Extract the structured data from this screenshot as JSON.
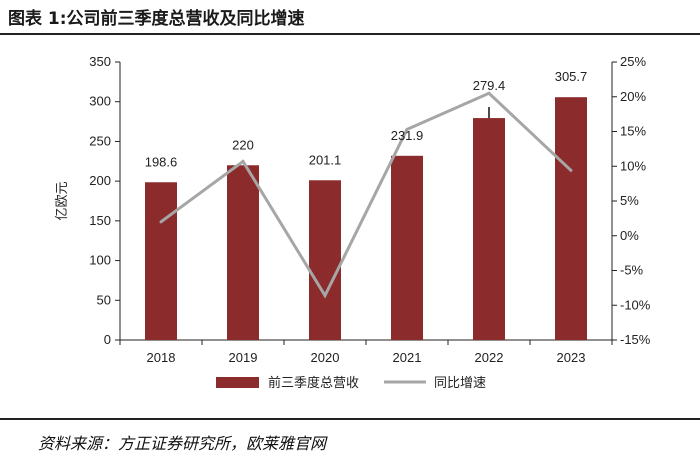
{
  "header": {
    "title": "图表 1:公司前三季度总营收及同比增速"
  },
  "footer": {
    "source": "资料来源：方正证券研究所，欧莱雅官网"
  },
  "colors": {
    "bar": "#8c2b2b",
    "line": "#a6a6a6",
    "rule": "#222222"
  },
  "chart_data": {
    "type": "bar",
    "categories": [
      "2018",
      "2019",
      "2020",
      "2021",
      "2022",
      "2023"
    ],
    "ylabel": "亿欧元",
    "ylim": [
      0,
      350
    ],
    "y_ticks": [
      "0",
      "50",
      "100",
      "150",
      "200",
      "250",
      "300",
      "350"
    ],
    "y2lim": [
      -15,
      25
    ],
    "y2_ticks": [
      "-15%",
      "-10%",
      "-5%",
      "0%",
      "5%",
      "10%",
      "15%",
      "20%",
      "25%"
    ],
    "series": [
      {
        "name": "前三季度总营收",
        "type": "bar",
        "values": [
          198.6,
          220,
          201.1,
          231.9,
          279.4,
          305.7
        ],
        "labels": [
          "198.6",
          "220",
          "201.1",
          "231.9",
          "279.4",
          "305.7"
        ]
      },
      {
        "name": "同比增速",
        "type": "line",
        "axis": "right",
        "values": [
          2,
          10.7,
          -8.6,
          15.3,
          20.5,
          9.4
        ]
      }
    ],
    "grid": false,
    "legend": "bottom"
  }
}
